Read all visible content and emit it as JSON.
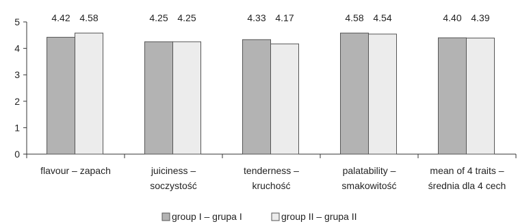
{
  "chart_data": {
    "type": "bar",
    "categories": [
      [
        "flavour – zapach"
      ],
      [
        "juiciness –",
        "soczystość"
      ],
      [
        "tenderness –",
        "kruchość"
      ],
      [
        "palatability –",
        "smakowitość"
      ],
      [
        "mean of 4 traits –",
        "średnia dla 4 cech"
      ]
    ],
    "series": [
      {
        "name": "group I – grupa I",
        "values": [
          4.42,
          4.25,
          4.33,
          4.58,
          4.4
        ],
        "labels": [
          "4.42",
          "4.25",
          "4.33",
          "4.58",
          "4.40"
        ],
        "color": "#b3b3b3"
      },
      {
        "name": "group II – grupa II",
        "values": [
          4.58,
          4.25,
          4.17,
          4.54,
          4.39
        ],
        "labels": [
          "4.58",
          "4.25",
          "4.17",
          "4.54",
          "4.39"
        ],
        "color": "#ececec"
      }
    ],
    "yticks": [
      0,
      1,
      2,
      3,
      4,
      5
    ],
    "ylim": [
      0,
      5
    ],
    "grid": false,
    "legend": "bottom",
    "bar_outline": "#555555"
  }
}
